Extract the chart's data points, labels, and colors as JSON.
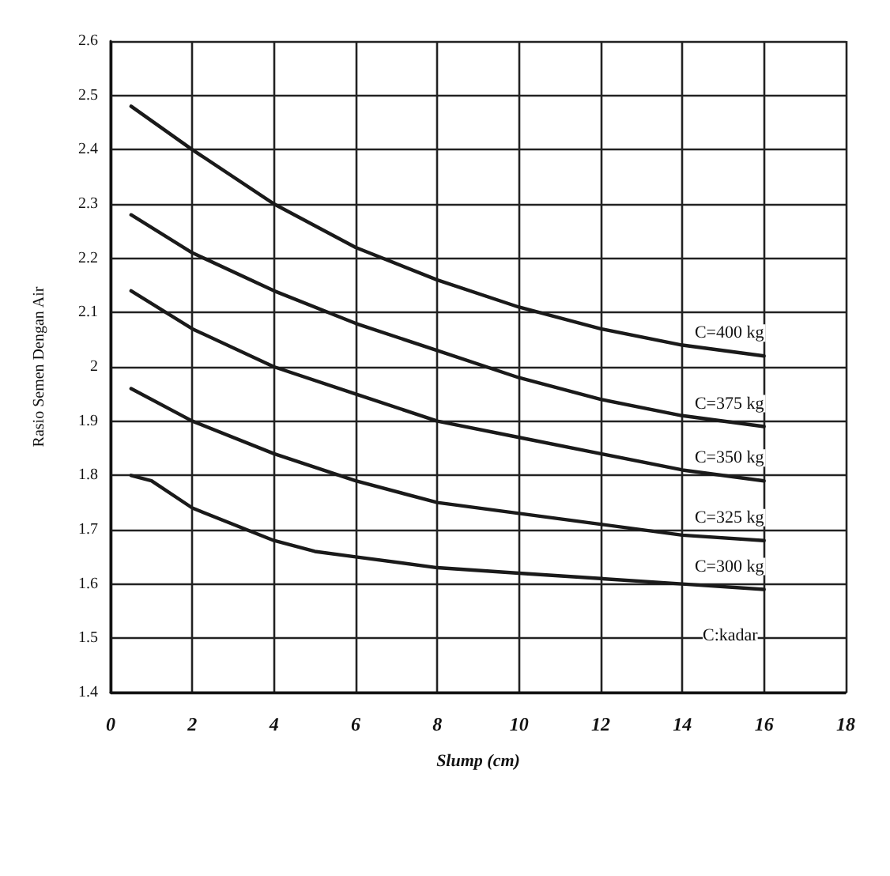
{
  "chart_data": {
    "type": "line",
    "xlabel": "Slump (cm)",
    "ylabel": "Rasio Semen Dengan Air",
    "legend_title": "C:kadar",
    "xlim": [
      0,
      18
    ],
    "xticks": [
      0,
      2,
      4,
      6,
      8,
      10,
      12,
      14,
      16,
      18
    ],
    "ylim": [
      1.4,
      2.6
    ],
    "yticks": [
      1.4,
      1.5,
      1.6,
      1.7,
      1.8,
      1.9,
      2,
      2.1,
      2.2,
      2.3,
      2.4,
      2.5,
      2.6
    ],
    "grid": true,
    "marker": "none",
    "line_style": "solid",
    "legend": false,
    "series": [
      {
        "name": "C=400 kg",
        "color": "#1a1a1a",
        "x": [
          0.5,
          2,
          4,
          6,
          8,
          10,
          12,
          14,
          16
        ],
        "values": [
          2.48,
          2.4,
          2.3,
          2.22,
          2.16,
          2.11,
          2.07,
          2.04,
          2.02
        ]
      },
      {
        "name": "C=375 kg",
        "color": "#1a1a1a",
        "x": [
          0.5,
          2,
          4,
          6,
          8,
          10,
          12,
          14,
          16
        ],
        "values": [
          2.28,
          2.21,
          2.14,
          2.08,
          2.03,
          1.98,
          1.94,
          1.91,
          1.89
        ]
      },
      {
        "name": "C=350 kg",
        "color": "#1a1a1a",
        "x": [
          0.5,
          2,
          4,
          6,
          8,
          10,
          12,
          14,
          16
        ],
        "values": [
          2.14,
          2.07,
          2.0,
          1.95,
          1.9,
          1.87,
          1.84,
          1.81,
          1.79
        ]
      },
      {
        "name": "C=325 kg",
        "color": "#1a1a1a",
        "x": [
          0.5,
          2,
          4,
          6,
          8,
          10,
          12,
          14,
          16
        ],
        "values": [
          1.96,
          1.9,
          1.84,
          1.79,
          1.75,
          1.73,
          1.71,
          1.69,
          1.68
        ]
      },
      {
        "name": "C=300 kg",
        "color": "#1a1a1a",
        "x": [
          0.5,
          1,
          2,
          4,
          5,
          6,
          8,
          10,
          12,
          14,
          16
        ],
        "values": [
          1.8,
          1.79,
          1.74,
          1.68,
          1.66,
          1.65,
          1.63,
          1.62,
          1.61,
          1.6,
          1.59
        ]
      }
    ]
  }
}
